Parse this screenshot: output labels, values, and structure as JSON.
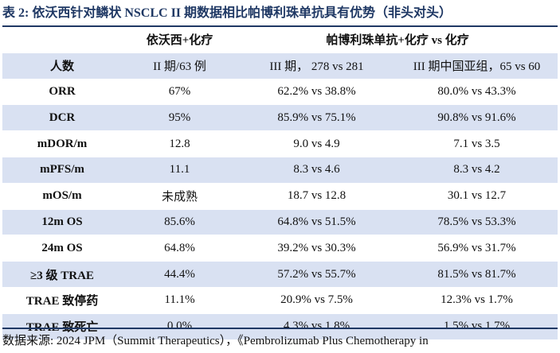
{
  "title": "表 2:  依沃西针对鳞状 NSCLC II 期数据相比帕博利珠单抗具有优势（非头对头）",
  "header": [
    "",
    "依沃西+化疗",
    "帕博利珠单抗+化疗 vs 化疗"
  ],
  "rows": [
    [
      "人数",
      "II 期/63 例",
      "III 期， 278 vs 281",
      "III 期中国亚组，65 vs 60"
    ],
    [
      "ORR",
      "67%",
      "62.2% vs 38.8%",
      "80.0% vs 43.3%"
    ],
    [
      "DCR",
      "95%",
      "85.9% vs 75.1%",
      "90.8% vs 91.6%"
    ],
    [
      "mDOR/m",
      "12.8",
      "9.0 vs 4.9",
      "7.1 vs 3.5"
    ],
    [
      "mPFS/m",
      "11.1",
      "8.3 vs 4.6",
      "8.3 vs 4.2"
    ],
    [
      "mOS/m",
      "未成熟",
      "18.7 vs 12.8",
      "30.1 vs 12.7"
    ],
    [
      "12m OS",
      "85.6%",
      "64.8% vs 51.5%",
      "78.5% vs 53.3%"
    ],
    [
      "24m OS",
      "64.8%",
      "39.2% vs 30.3%",
      "56.9% vs 31.7%"
    ],
    [
      "≥3 级 TRAE",
      "44.4%",
      "57.2% vs 55.7%",
      "81.5% vs 81.7%"
    ],
    [
      "TRAE 致停药",
      "11.1%",
      "20.9% vs 7.5%",
      "12.3% vs 1.7%"
    ],
    [
      "TRAE 致死亡",
      "0.0%",
      "4.3% vs 1.8%",
      "1.5% vs 1.7%"
    ]
  ],
  "source": "数据来源:  2024 JPM（Summit Therapeutics），《Pembrolizumab Plus Chemotherapy in",
  "colors": {
    "title": "#1f3864",
    "shade": "#d9e1f2",
    "rule": "#1f3864"
  }
}
